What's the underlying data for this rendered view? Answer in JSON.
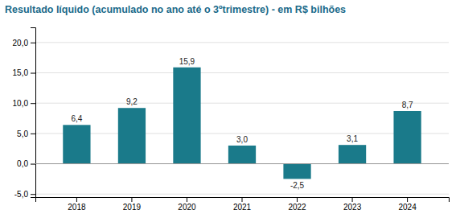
{
  "chart_data": {
    "type": "bar",
    "title": "Resultado líquido (acumulado no ano até o 3ºtrimestre) - em R$ bilhões",
    "categories": [
      "2018",
      "2019",
      "2020",
      "2021",
      "2022",
      "2023",
      "2024"
    ],
    "values": [
      6.4,
      9.2,
      15.9,
      3.0,
      -2.5,
      3.1,
      8.7
    ],
    "value_labels": [
      "6,4",
      "9,2",
      "15,9",
      "3,0",
      "-2,5",
      "3,1",
      "8,7"
    ],
    "color": "#1a7a8a",
    "ylim": [
      -5.5,
      22.5
    ],
    "yticks": [
      {
        "value": -5.0,
        "label": "-5,0"
      },
      {
        "value": 0.0,
        "label": "0,0"
      },
      {
        "value": 5.0,
        "label": "5,0"
      },
      {
        "value": 10.0,
        "label": "10,0"
      },
      {
        "value": 15.0,
        "label": "15,0"
      },
      {
        "value": 20.0,
        "label": "20,0"
      }
    ],
    "grid": true,
    "data_labels": true
  }
}
